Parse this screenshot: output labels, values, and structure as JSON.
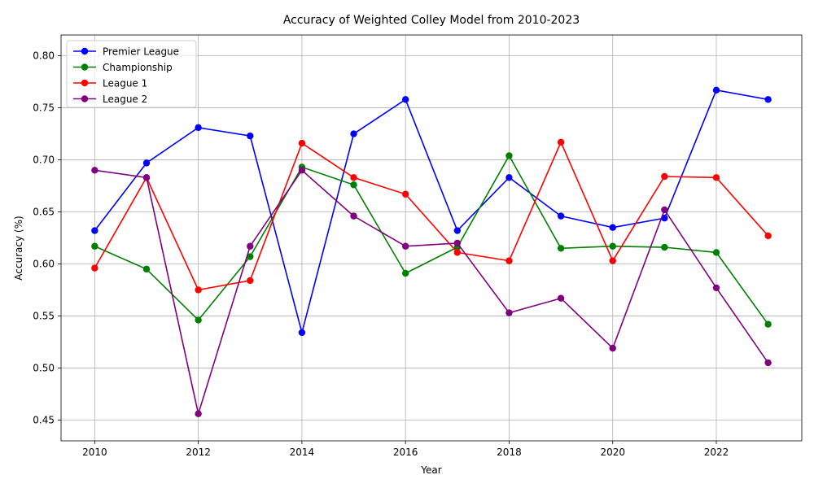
{
  "chart_data": {
    "type": "line",
    "title": "Accuracy of Weighted Colley Model from 2010-2023",
    "xlabel": "Year",
    "ylabel": "Accuracy (%)",
    "x": [
      2010,
      2011,
      2012,
      2013,
      2014,
      2015,
      2016,
      2017,
      2018,
      2019,
      2020,
      2021,
      2022,
      2023
    ],
    "xlim": [
      2009.35,
      2023.65
    ],
    "ylim": [
      0.43,
      0.82
    ],
    "xticks": [
      "2010",
      "2012",
      "2014",
      "2016",
      "2018",
      "2020",
      "2022"
    ],
    "yticks": [
      "0.45",
      "0.50",
      "0.55",
      "0.60",
      "0.65",
      "0.70",
      "0.75",
      "0.80"
    ],
    "grid": true,
    "legend_position": "top-left",
    "series": [
      {
        "name": "Premier League",
        "color": "#0000ff",
        "values": [
          0.632,
          0.697,
          0.731,
          0.723,
          0.534,
          0.725,
          0.758,
          0.632,
          0.683,
          0.646,
          0.635,
          0.644,
          0.767,
          0.758
        ]
      },
      {
        "name": "Championship",
        "color": "#008000",
        "values": [
          0.617,
          0.595,
          0.546,
          0.607,
          0.693,
          0.676,
          0.591,
          0.616,
          0.704,
          0.615,
          0.617,
          0.616,
          0.611,
          0.542
        ]
      },
      {
        "name": "League 1",
        "color": "#ff0000",
        "values": [
          0.596,
          0.683,
          0.575,
          0.584,
          0.716,
          0.683,
          0.667,
          0.611,
          0.603,
          0.717,
          0.603,
          0.684,
          0.683,
          0.627
        ]
      },
      {
        "name": "League 2",
        "color": "#800080",
        "values": [
          0.69,
          0.683,
          0.456,
          0.617,
          0.69,
          0.646,
          0.617,
          0.62,
          0.553,
          0.567,
          0.519,
          0.652,
          0.577,
          0.505
        ]
      }
    ]
  }
}
